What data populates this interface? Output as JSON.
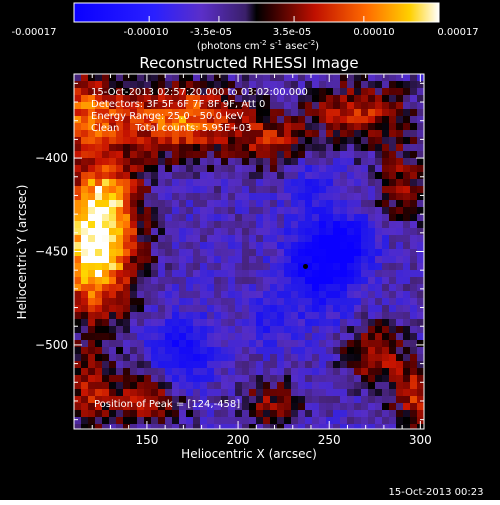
{
  "colorbar": {
    "ticks": [
      "-0.00017",
      "-0.00010",
      "-3.5e-05",
      "3.5e-05",
      "0.00010",
      "0.00017"
    ],
    "tick_values": [
      -0.00017,
      -0.0001,
      -3.5e-05,
      3.5e-05,
      0.0001,
      0.00017
    ],
    "range": [
      -0.00017,
      0.00017
    ],
    "units_prefix": "(photons cm",
    "units_exp1": "-2",
    "units_mid": " s",
    "units_exp2": "-1",
    "units_mid2": " asec",
    "units_exp3": "-2",
    "units_suffix": ")"
  },
  "chart_data": {
    "type": "heatmap",
    "title": "Reconstructed RHESSI Image",
    "xlabel": "Heliocentric X (arcsec)",
    "ylabel": "Heliocentric Y (arcsec)",
    "xlim": [
      110,
      302
    ],
    "ylim": [
      -545,
      -355
    ],
    "xticks": [
      150,
      200,
      250,
      300
    ],
    "yticks": [
      -400,
      -450,
      -500
    ],
    "peak": [
      124,
      -458
    ],
    "marker": [
      237,
      -458
    ],
    "annotations": [
      "15-Oct-2013 02:57:20.000 to 03:02:00.000",
      "Detectors: 3F 5F 6F 7F 8F 9F, Att 0",
      "Energy Range: 25.0 - 50.0 keV",
      "Clean     Total counts: 5.95E+03"
    ],
    "peak_text": "Position of Peak = [124,-458]"
  },
  "footer": {
    "timestamp": "15-Oct-2013 00:23"
  }
}
